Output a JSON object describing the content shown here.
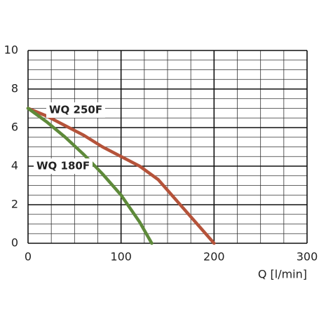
{
  "chart_data": {
    "type": "line",
    "x_label": "Q [l/min]",
    "xlim": [
      0,
      300
    ],
    "xticks": [
      0,
      100,
      200,
      300
    ],
    "ylim": [
      0,
      10
    ],
    "yticks": [
      0,
      2,
      4,
      6,
      8,
      10
    ],
    "grid": true,
    "series": [
      {
        "name": "WQ 250F",
        "color": "#b5533a",
        "x": [
          0,
          20,
          40,
          60,
          80,
          100,
          120,
          140,
          160,
          180,
          200
        ],
        "values": [
          7,
          6.6,
          6.1,
          5.6,
          5.0,
          4.5,
          4.0,
          3.3,
          2.2,
          1.1,
          0
        ]
      },
      {
        "name": "WQ 180F",
        "color": "#5e8a3a",
        "x": [
          0,
          20,
          40,
          60,
          80,
          100,
          120,
          133
        ],
        "values": [
          7,
          6.3,
          5.5,
          4.6,
          3.6,
          2.5,
          1.1,
          0
        ]
      }
    ]
  }
}
